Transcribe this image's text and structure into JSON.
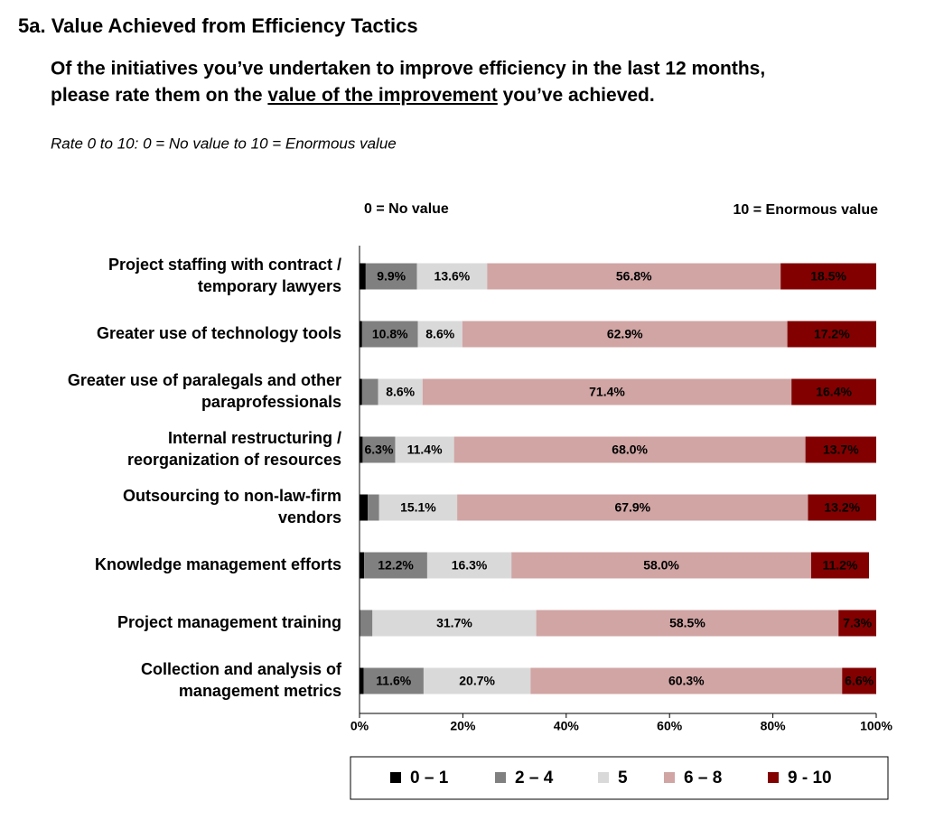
{
  "chart_data": {
    "type": "stacked-bar-horizontal",
    "title": "5a. Value Achieved from Efficiency Tactics",
    "subtitle": [
      "Of the initiatives you’ve undertaken to improve efficiency in the last 12 months,",
      "please rate them on the ",
      "value of the improvement",
      " you’ve achieved."
    ],
    "note": "Rate 0 to 10: 0 = No value to 10 = Enormous value",
    "annotations": [
      "0 = No value",
      "10 = Enormous value"
    ],
    "categories": [
      [
        "Project staffing with contract /",
        "temporary lawyers"
      ],
      [
        "Greater use of technology tools"
      ],
      [
        "Greater use of paralegals and other",
        "paraprofessionals"
      ],
      [
        "Internal restructuring /",
        "reorganization of resources"
      ],
      [
        "Outsourcing to non-law-firm",
        "vendors"
      ],
      [
        "Knowledge management efforts"
      ],
      [
        "Project management training"
      ],
      [
        "Collection and analysis of",
        "management metrics"
      ]
    ],
    "series": [
      {
        "name": "0 – 1",
        "color": "#000000",
        "values": [
          1.2,
          0.5,
          0.5,
          0.6,
          1.6,
          0.9,
          0,
          0.8
        ],
        "value_labels": [
          null,
          null,
          null,
          null,
          null,
          null,
          null,
          null
        ]
      },
      {
        "name": "2 – 4",
        "color": "#808080",
        "values": [
          9.9,
          10.8,
          3.1,
          6.3,
          2.2,
          12.2,
          2.5,
          11.6
        ],
        "value_labels": [
          "9.9%",
          "10.8%",
          null,
          "6.3%",
          null,
          "12.2%",
          null,
          "11.6%"
        ]
      },
      {
        "name": "5",
        "color": "#d9d9d9",
        "values": [
          13.6,
          8.6,
          8.6,
          11.4,
          15.1,
          16.3,
          31.7,
          20.7
        ],
        "value_labels": [
          "13.6%",
          "8.6%",
          "8.6%",
          "11.4%",
          "15.1%",
          "16.3%",
          "31.7%",
          "20.7%"
        ]
      },
      {
        "name": "6 – 8",
        "color": "#d0a5a4",
        "values": [
          56.8,
          62.9,
          71.4,
          68.0,
          67.9,
          58.0,
          58.5,
          60.3
        ],
        "value_labels": [
          "56.8%",
          "62.9%",
          "71.4%",
          "68.0%",
          "67.9%",
          "58.0%",
          "58.5%",
          "60.3%"
        ]
      },
      {
        "name": "9 - 10",
        "color": "#820000",
        "values": [
          18.5,
          17.2,
          16.4,
          13.7,
          13.2,
          11.2,
          7.3,
          6.6
        ],
        "value_labels": [
          "18.5%",
          "17.2%",
          "16.4%",
          "13.7%",
          "13.2%",
          "11.2%",
          "7.3%",
          "6.6%"
        ]
      }
    ],
    "xlim": [
      0,
      100
    ],
    "xticks": [
      {
        "value": 0,
        "label": "0%"
      },
      {
        "value": 20,
        "label": "20%"
      },
      {
        "value": 40,
        "label": "40%"
      },
      {
        "value": 60,
        "label": "60%"
      },
      {
        "value": 80,
        "label": "80%"
      },
      {
        "value": 100,
        "label": "100%"
      }
    ],
    "legend": "bottom"
  }
}
